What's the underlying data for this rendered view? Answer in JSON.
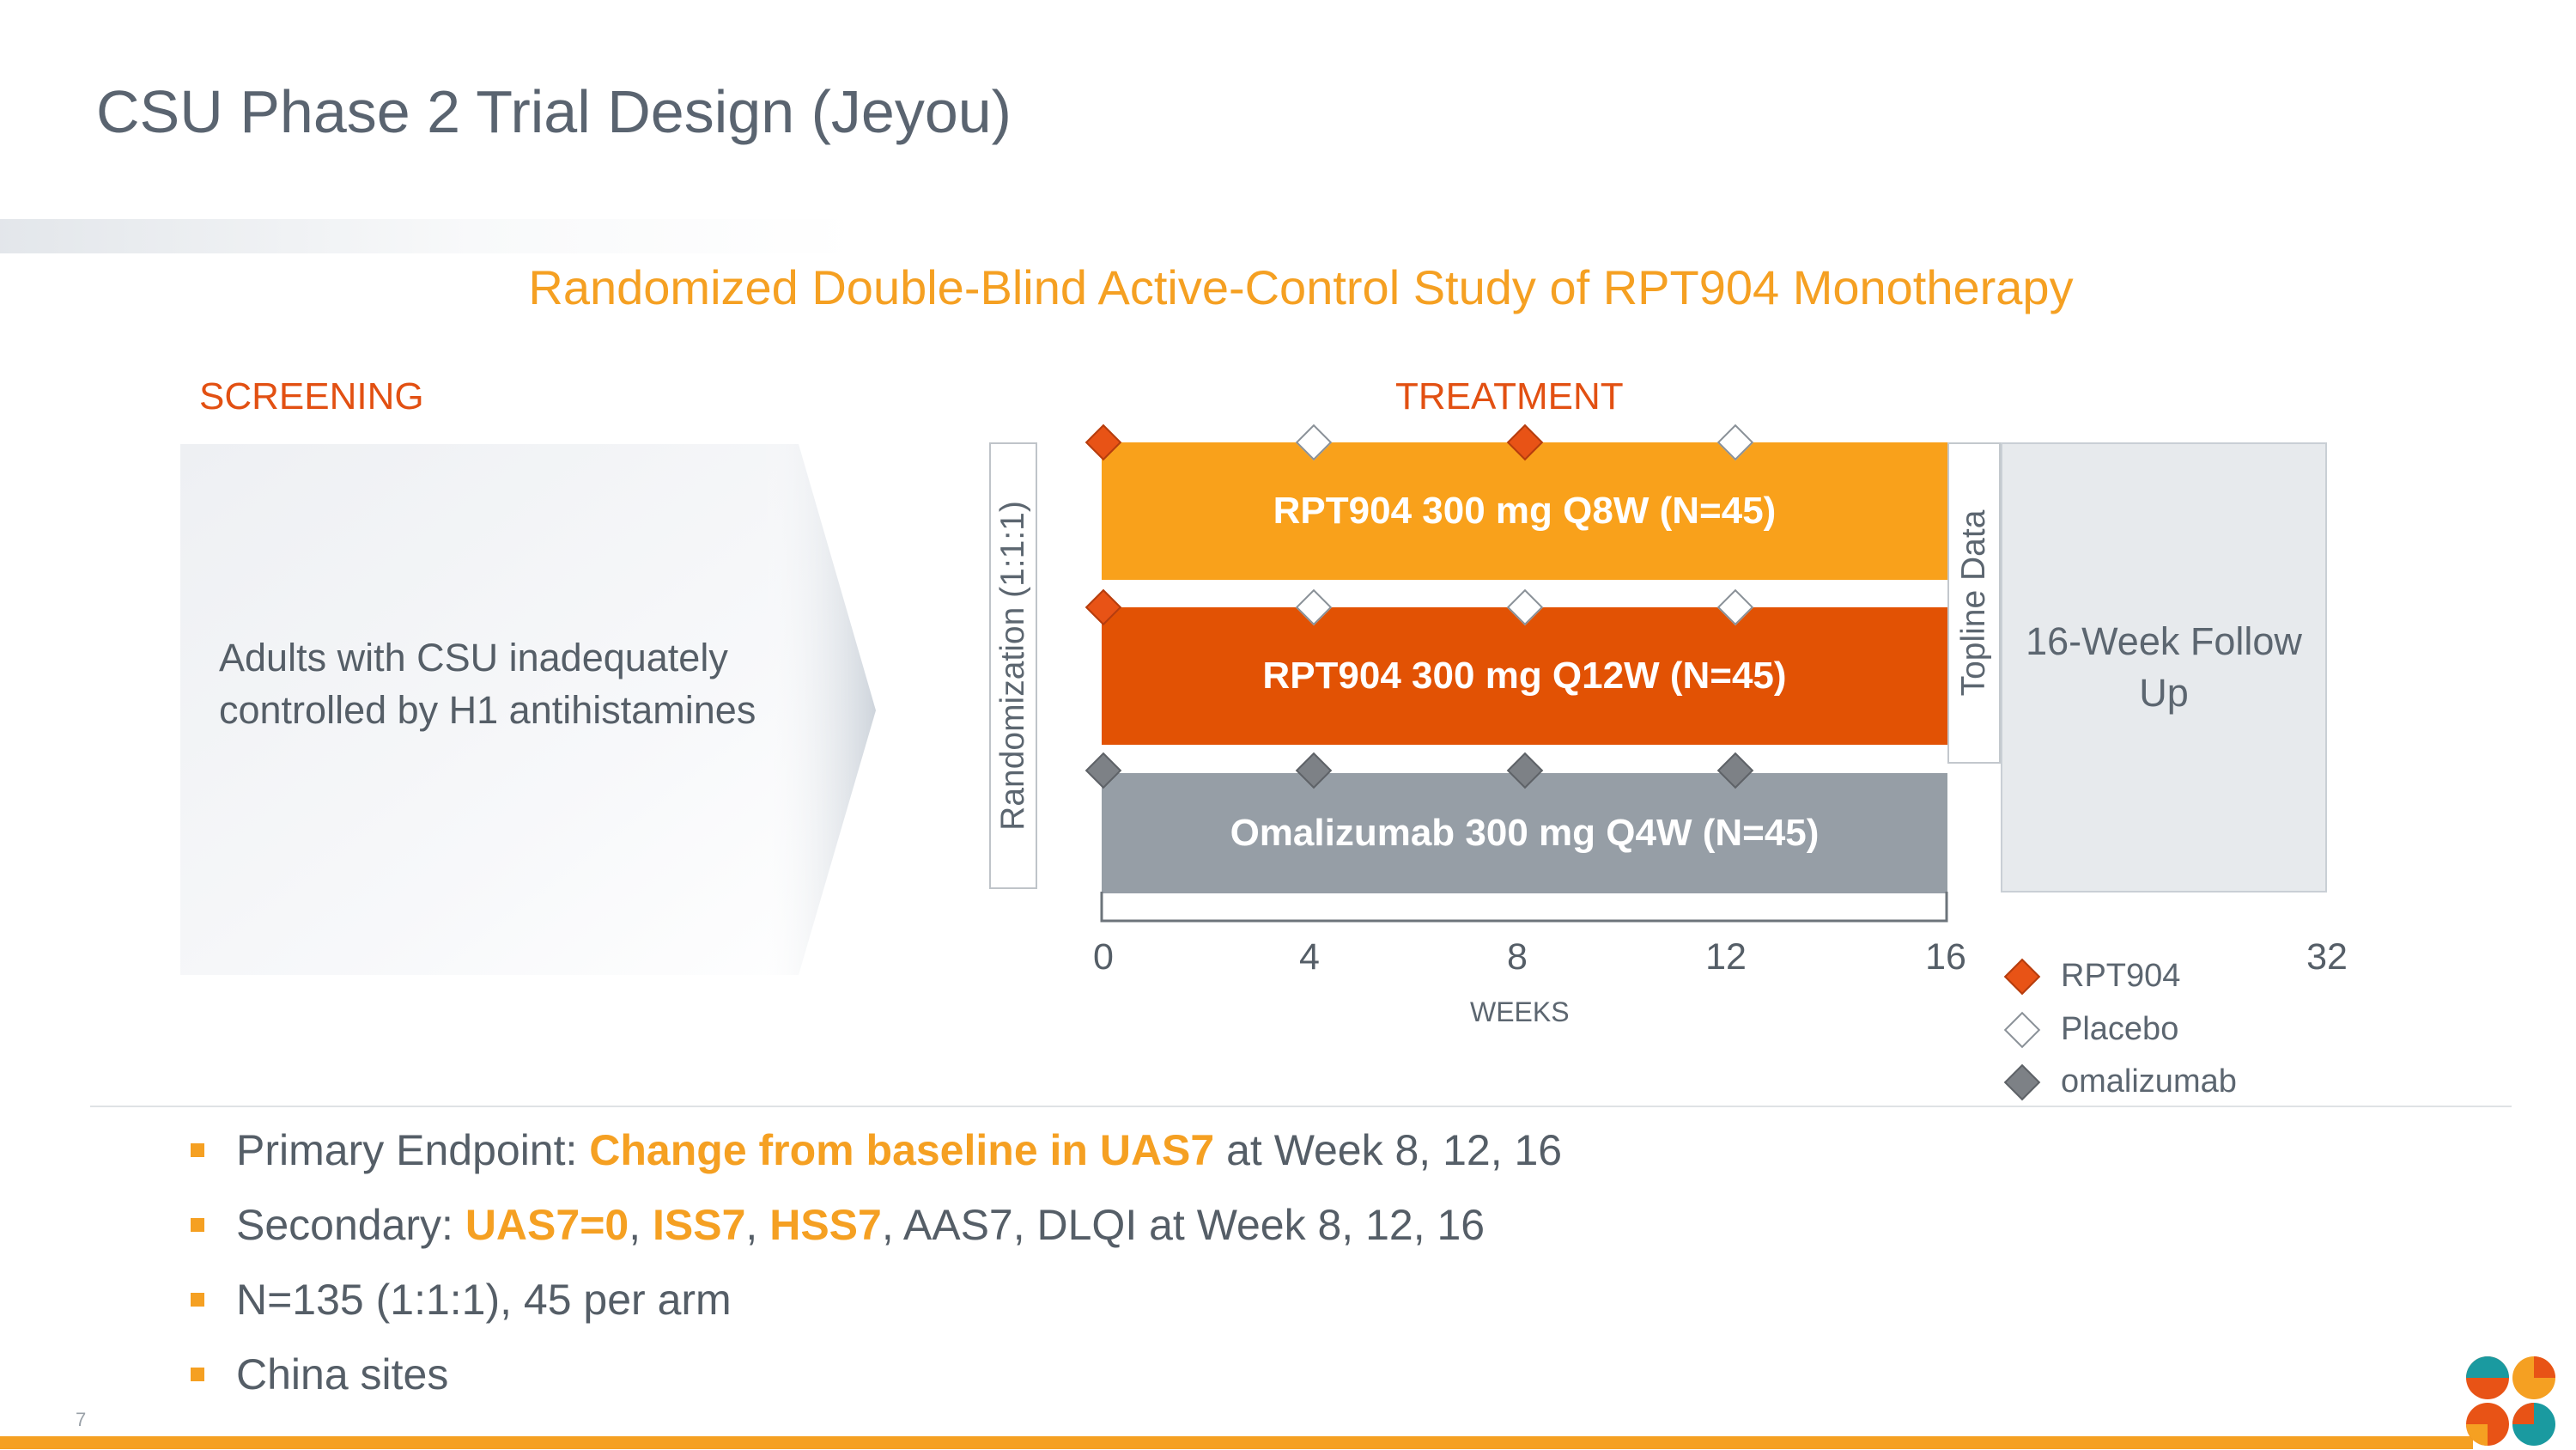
{
  "slide": {
    "title": "CSU Phase 2 Trial Design (Jeyou)",
    "subtitle": "Randomized Double-Blind Active-Control Study of RPT904 Monotherapy",
    "page_number": "7"
  },
  "screening": {
    "label": "SCREENING",
    "population": "Adults with CSU inadequately controlled by H1 antihistamines"
  },
  "treatment": {
    "label": "TREATMENT",
    "randomization": "Randomization (1:1:1)",
    "topline": "Topline Data",
    "follow_up": "16-Week Follow Up",
    "arms": [
      {
        "label": "RPT904 300 mg Q8W (N=45)",
        "color": "#f9a11b",
        "doses": [
          "rpt904",
          "placebo",
          "rpt904",
          "placebo"
        ]
      },
      {
        "label": "RPT904 300 mg Q12W (N=45)",
        "color": "#e25204",
        "doses": [
          "rpt904",
          "placebo",
          "placebo",
          "placebo"
        ]
      },
      {
        "label": "Omalizumab 300 mg Q4W (N=45)",
        "color": "#969ea6",
        "doses": [
          "omalizumab",
          "omalizumab",
          "omalizumab",
          "omalizumab"
        ]
      }
    ],
    "dose_weeks": [
      0,
      4,
      8,
      12
    ]
  },
  "timeline": {
    "ticks": [
      "0",
      "4",
      "8",
      "12",
      "16",
      "32"
    ],
    "axis_label": "WEEKS"
  },
  "legend": [
    {
      "label": "RPT904",
      "icon": "rpt904-diamond-icon",
      "color": "#e85316"
    },
    {
      "label": "Placebo",
      "icon": "placebo-diamond-icon",
      "color": "#ffffff"
    },
    {
      "label": "omalizumab",
      "icon": "omalizumab-diamond-icon",
      "color": "#7d8186"
    }
  ],
  "bullets": {
    "b1": {
      "pre": "Primary Endpoint: ",
      "hl": "Change from baseline in UAS7",
      "post": " at Week 8, 12, 16"
    },
    "b2": {
      "pre": "Secondary: ",
      "hl1": "UAS7=0",
      "sep1": ", ",
      "hl2": "ISS7",
      "sep2": ", ",
      "hl3": "HSS7",
      "post": ", AAS7, DLQI at Week 8, 12, 16"
    },
    "b3": {
      "text": "N=135 (1:1:1), 45 per arm"
    },
    "b4": {
      "text": "China sites"
    }
  },
  "colors": {
    "accent": "#f5a022",
    "treatment_label": "#e25012"
  }
}
